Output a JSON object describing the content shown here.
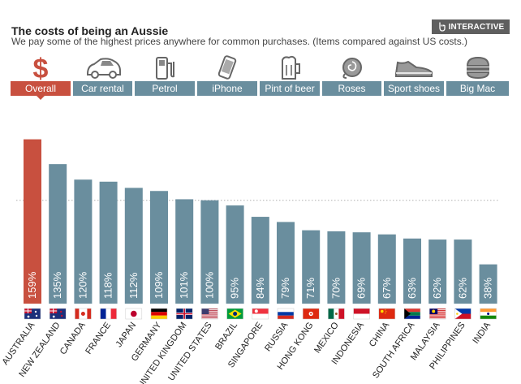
{
  "header": {
    "title": "The costs of being an Aussie",
    "subtitle": "We pay some of the highest prices anywhere for common purchases. (Items compared against US costs.)",
    "interactive_label": "INTERACTIVE"
  },
  "tabs": [
    {
      "label": "Overall",
      "icon": "dollar-icon",
      "active": true
    },
    {
      "label": "Car rental",
      "icon": "car-icon",
      "active": false
    },
    {
      "label": "Petrol",
      "icon": "fuel-pump-icon",
      "active": false
    },
    {
      "label": "iPhone",
      "icon": "phone-icon",
      "active": false
    },
    {
      "label": "Pint of beer",
      "icon": "beer-icon",
      "active": false
    },
    {
      "label": "Roses",
      "icon": "rose-icon",
      "active": false
    },
    {
      "label": "Sport shoes",
      "icon": "shoe-icon",
      "active": false
    },
    {
      "label": "Big Mac",
      "icon": "burger-icon",
      "active": false
    }
  ],
  "colors": {
    "highlight": "#c8503f",
    "bar": "#6a8e9e",
    "tab": "#6a8e9e",
    "reference_line": "#b0b0b0"
  },
  "chart_data": {
    "type": "bar",
    "title": "Overall",
    "categories": [
      "AUSTRALIA",
      "NEW ZEALAND",
      "CANADA",
      "FRANCE",
      "JAPAN",
      "GERMANY",
      "UNITED KINGDOM",
      "UNITED STATES",
      "BRAZIL",
      "SINGAPORE",
      "RUSSIA",
      "HONG KONG",
      "MEXICO",
      "INDONESIA",
      "CHINA",
      "SOUTH AFRICA",
      "MALAYSIA",
      "PHILIPPINES",
      "INDIA"
    ],
    "values": [
      159,
      135,
      120,
      118,
      112,
      109,
      101,
      100,
      95,
      84,
      79,
      71,
      70,
      69,
      67,
      63,
      62,
      62,
      38
    ],
    "value_labels": [
      "159%",
      "135%",
      "120%",
      "118%",
      "112%",
      "109%",
      "101%",
      "100%",
      "95%",
      "84%",
      "79%",
      "71%",
      "70%",
      "69%",
      "67%",
      "63%",
      "62%",
      "62%",
      "38%"
    ],
    "highlight_index": 0,
    "reference_value": 100,
    "ylim": [
      0,
      165
    ],
    "xlabel": "",
    "ylabel": ""
  }
}
